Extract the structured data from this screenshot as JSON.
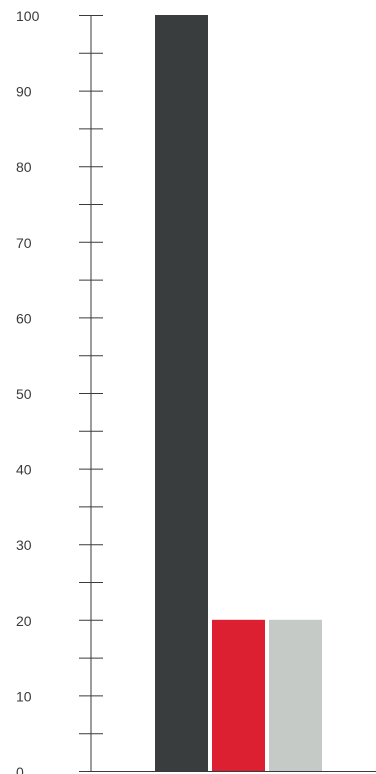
{
  "chart_data": {
    "type": "bar",
    "categories": [
      "",
      "",
      ""
    ],
    "values": [
      100,
      20,
      20
    ],
    "colors": [
      "#3a3d3e",
      "#dc1f31",
      "#c5cac7"
    ],
    "title": "",
    "xlabel": "",
    "ylabel": "",
    "ylim": [
      0,
      100
    ],
    "yticks": [
      0,
      10,
      20,
      30,
      40,
      50,
      60,
      70,
      80,
      90,
      100
    ],
    "ytick_labels": [
      "0",
      "10",
      "20",
      "30",
      "40",
      "50",
      "60",
      "70",
      "80",
      "90",
      "100"
    ],
    "minor_ticks": true,
    "grid": false,
    "legend": "none",
    "axis_color": "#3a3a3a"
  }
}
